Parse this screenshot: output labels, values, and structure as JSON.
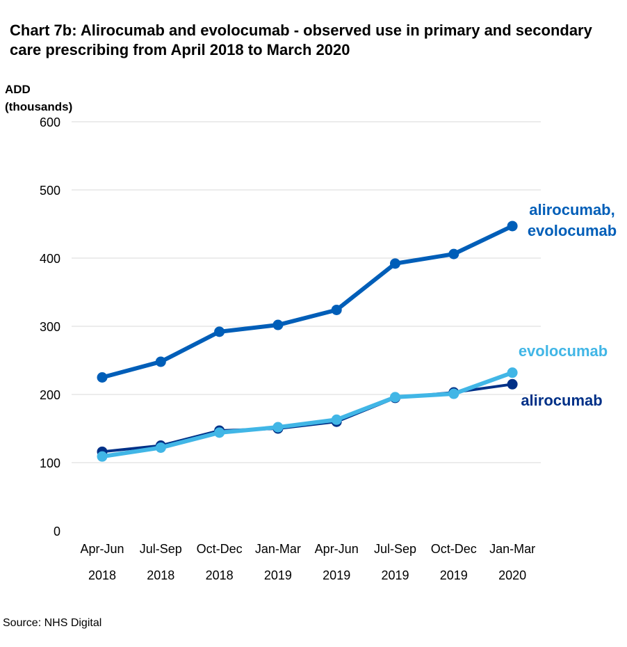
{
  "chart_data": {
    "type": "line",
    "title": "Chart 7b: Alirocumab and evolocumab - observed use in primary and secondary care prescribing from April 2018 to March 2020",
    "ylabel": [
      "ADD",
      "(thousands)"
    ],
    "ylim": [
      0,
      600
    ],
    "yticks": [
      0,
      100,
      200,
      300,
      400,
      500,
      600
    ],
    "grid": true,
    "categories": [
      [
        "Apr-Jun",
        "2018"
      ],
      [
        "Jul-Sep",
        "2018"
      ],
      [
        "Oct-Dec",
        "2018"
      ],
      [
        "Jan-Mar",
        "2019"
      ],
      [
        "Apr-Jun",
        "2019"
      ],
      [
        "Jul-Sep",
        "2019"
      ],
      [
        "Oct-Dec",
        "2019"
      ],
      [
        "Jan-Mar",
        "2020"
      ]
    ],
    "series": [
      {
        "name": "alirocumab, evolocumab",
        "label_lines": [
          "alirocumab,",
          "evolocumab"
        ],
        "color": "#005EB8",
        "values": [
          225,
          248,
          292,
          302,
          324,
          392,
          406,
          447
        ]
      },
      {
        "name": "alirocumab",
        "label_lines": [
          "alirocumab"
        ],
        "color": "#003087",
        "values": [
          116,
          125,
          147,
          150,
          160,
          195,
          203,
          215
        ]
      },
      {
        "name": "evolocumab",
        "label_lines": [
          "evolocumab"
        ],
        "color": "#41B6E6",
        "values": [
          109,
          122,
          144,
          152,
          163,
          196,
          201,
          232
        ]
      }
    ]
  },
  "source": "Source: NHS Digital"
}
